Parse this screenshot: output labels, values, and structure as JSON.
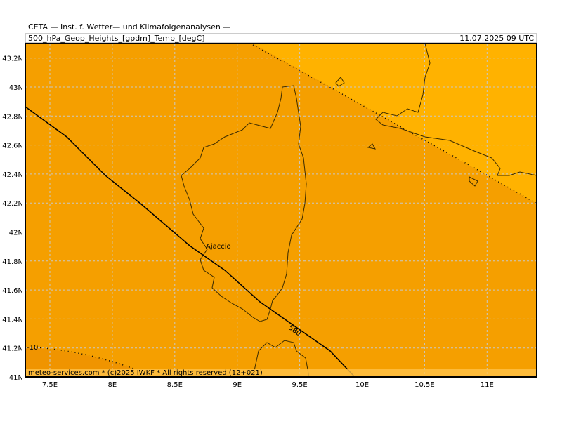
{
  "header": {
    "source": "CETA — Inst. f. Wetter— und Klimafolgenanalysen —",
    "product": "500_hPa_Geop_Heights_[gpdm]_Temp_[degC]",
    "valid_time": "11.07.2025 09 UTC"
  },
  "map": {
    "lat_labels": [
      "41N",
      "41.2N",
      "41.4N",
      "41.6N",
      "41.8N",
      "42N",
      "42.2N",
      "42.4N",
      "42.6N",
      "42.8N",
      "43N",
      "43.2N"
    ],
    "lon_labels": [
      "7.5E",
      "8E",
      "8.5E",
      "9E",
      "9.5E",
      "10E",
      "10.5E",
      "11E"
    ],
    "place": "Ajaccio",
    "height_contour_label": "580",
    "temp_contour_label": "-10"
  },
  "footer": "meteo-services.com * (c)2025 IWKF * All rights reserved (12+021)"
}
